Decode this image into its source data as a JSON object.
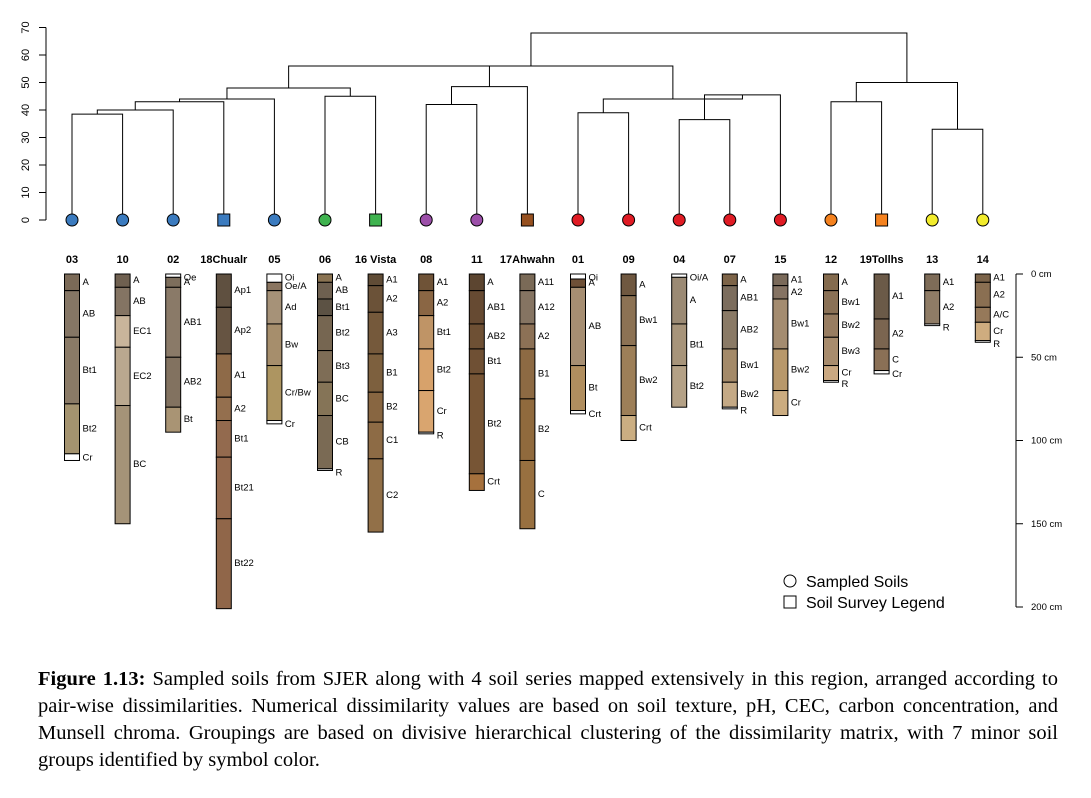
{
  "chart_data": {
    "type": "dendrogram",
    "y_axis": {
      "range": [
        0,
        70
      ],
      "ticks": [
        0,
        10,
        20,
        30,
        40,
        50,
        60,
        70
      ]
    },
    "depth_scale": {
      "labels": [
        "0 cm",
        "50 cm",
        "100 cm",
        "150 cm",
        "200 cm"
      ],
      "values_cm": [
        0,
        50,
        100,
        150,
        200
      ]
    },
    "leaves": [
      {
        "id": "03",
        "color": "#3b7bbf",
        "marker": "circle"
      },
      {
        "id": "10",
        "color": "#3b7bbf",
        "marker": "circle"
      },
      {
        "id": "02",
        "color": "#3b7bbf",
        "marker": "circle"
      },
      {
        "id": "18Chualr",
        "color": "#3b7bbf",
        "marker": "square"
      },
      {
        "id": "05",
        "color": "#3b7bbf",
        "marker": "circle"
      },
      {
        "id": "06",
        "color": "#3fb34f",
        "marker": "circle"
      },
      {
        "id": "16 Vista",
        "color": "#3fb34f",
        "marker": "square"
      },
      {
        "id": "08",
        "color": "#9c4fa9",
        "marker": "circle"
      },
      {
        "id": "11",
        "color": "#9c4fa9",
        "marker": "circle"
      },
      {
        "id": "17Ahwahn",
        "color": "#96501f",
        "marker": "square"
      },
      {
        "id": "01",
        "color": "#e01b24",
        "marker": "circle"
      },
      {
        "id": "09",
        "color": "#e01b24",
        "marker": "circle"
      },
      {
        "id": "04",
        "color": "#e01b24",
        "marker": "circle"
      },
      {
        "id": "07",
        "color": "#e01b24",
        "marker": "circle"
      },
      {
        "id": "15",
        "color": "#e01b24",
        "marker": "circle"
      },
      {
        "id": "12",
        "color": "#f5821f",
        "marker": "circle"
      },
      {
        "id": "19Tollhs",
        "color": "#f5821f",
        "marker": "square"
      },
      {
        "id": "13",
        "color": "#f2ec2c",
        "marker": "circle"
      },
      {
        "id": "14",
        "color": "#f2ec2c",
        "marker": "circle"
      }
    ],
    "merges": [
      {
        "a": 0,
        "b": 1,
        "height": 38.5
      },
      {
        "a": -1,
        "b": 2,
        "height": 40
      },
      {
        "a": -2,
        "b": 3,
        "height": 43
      },
      {
        "a": -3,
        "b": 4,
        "height": 44
      },
      {
        "a": 5,
        "b": 6,
        "height": 45
      },
      {
        "a": -4,
        "b": -5,
        "height": 48
      },
      {
        "a": 7,
        "b": 8,
        "height": 42
      },
      {
        "a": -7,
        "b": 9,
        "height": 48.5
      },
      {
        "a": -6,
        "b": -8,
        "height": 56
      },
      {
        "a": 10,
        "b": 11,
        "height": 39
      },
      {
        "a": 12,
        "b": 13,
        "height": 36.5
      },
      {
        "a": -11,
        "b": 14,
        "height": 45.5
      },
      {
        "a": -10,
        "b": -12,
        "height": 44
      },
      {
        "a": -9,
        "b": -13,
        "height": 56
      },
      {
        "a": 15,
        "b": 16,
        "height": 43
      },
      {
        "a": 17,
        "b": 18,
        "height": 33
      },
      {
        "a": -15,
        "b": -16,
        "height": 50
      },
      {
        "a": -14,
        "b": -17,
        "height": 68
      }
    ],
    "profiles": [
      {
        "id": "03",
        "horizons": [
          {
            "name": "A",
            "top": 0,
            "bottom": 10,
            "color": "#7b6a57"
          },
          {
            "name": "AB",
            "top": 10,
            "bottom": 38,
            "color": "#857665"
          },
          {
            "name": "Bt1",
            "top": 38,
            "bottom": 78,
            "color": "#8a7a66"
          },
          {
            "name": "Bt2",
            "top": 78,
            "bottom": 108,
            "color": "#a4936f"
          },
          {
            "name": "Cr",
            "top": 108,
            "bottom": 112,
            "color": "#ffffff"
          }
        ]
      },
      {
        "id": "10",
        "horizons": [
          {
            "name": "A",
            "top": 0,
            "bottom": 8,
            "color": "#6f6050"
          },
          {
            "name": "AB",
            "top": 8,
            "bottom": 25,
            "color": "#847463"
          },
          {
            "name": "EC1",
            "top": 25,
            "bottom": 44,
            "color": "#c9b59b"
          },
          {
            "name": "EC2",
            "top": 44,
            "bottom": 79,
            "color": "#baa88f"
          },
          {
            "name": "BC",
            "top": 79,
            "bottom": 150,
            "color": "#a59378"
          }
        ]
      },
      {
        "id": "02",
        "horizons": [
          {
            "name": "Oe",
            "top": 0,
            "bottom": 2,
            "color": "#ffffff"
          },
          {
            "name": "A",
            "top": 2,
            "bottom": 8,
            "color": "#7d6e5c"
          },
          {
            "name": "AB1",
            "top": 8,
            "bottom": 50,
            "color": "#8a7a68"
          },
          {
            "name": "AB2",
            "top": 50,
            "bottom": 80,
            "color": "#827260"
          },
          {
            "name": "Bt",
            "top": 80,
            "bottom": 95,
            "color": "#a99474"
          }
        ]
      },
      {
        "id": "18Chualr",
        "horizons": [
          {
            "name": "Ap1",
            "top": 0,
            "bottom": 20,
            "color": "#5f5040"
          },
          {
            "name": "Ap2",
            "top": 20,
            "bottom": 48,
            "color": "#665442"
          },
          {
            "name": "A1",
            "top": 48,
            "bottom": 74,
            "color": "#8e6a48"
          },
          {
            "name": "A2",
            "top": 74,
            "bottom": 88,
            "color": "#946f4e"
          },
          {
            "name": "Bt1",
            "top": 88,
            "bottom": 110,
            "color": "#936a4e"
          },
          {
            "name": "Bt21",
            "top": 110,
            "bottom": 147,
            "color": "#94694d"
          },
          {
            "name": "Bt22",
            "top": 147,
            "bottom": 201,
            "color": "#906649"
          }
        ]
      },
      {
        "id": "05",
        "horizons": [
          {
            "name": "Oi",
            "top": 0,
            "bottom": 5,
            "color": "#ffffff"
          },
          {
            "name": "Oe/A",
            "top": 5,
            "bottom": 10,
            "color": "#8a7560"
          },
          {
            "name": "Ad",
            "top": 10,
            "bottom": 30,
            "color": "#a69278"
          },
          {
            "name": "Bw",
            "top": 30,
            "bottom": 55,
            "color": "#a68e6c"
          },
          {
            "name": "Cr/Bw",
            "top": 55,
            "bottom": 88,
            "color": "#ad9561"
          },
          {
            "name": "Cr",
            "top": 88,
            "bottom": 90,
            "color": "#ffffff"
          }
        ]
      },
      {
        "id": "06",
        "horizons": [
          {
            "name": "A",
            "top": 0,
            "bottom": 5,
            "color": "#8a7352"
          },
          {
            "name": "AB",
            "top": 5,
            "bottom": 15,
            "color": "#6e6050"
          },
          {
            "name": "Bt1",
            "top": 15,
            "bottom": 25,
            "color": "#5c5244"
          },
          {
            "name": "Bt2",
            "top": 25,
            "bottom": 46,
            "color": "#766651"
          },
          {
            "name": "Bt3",
            "top": 46,
            "bottom": 65,
            "color": "#7e6d56"
          },
          {
            "name": "BC",
            "top": 65,
            "bottom": 85,
            "color": "#857457"
          },
          {
            "name": "CB",
            "top": 85,
            "bottom": 117,
            "color": "#7a6a54"
          },
          {
            "name": "R",
            "top": 117,
            "bottom": 118,
            "color": "#ffffff"
          }
        ]
      },
      {
        "id": "16 Vista",
        "horizons": [
          {
            "name": "A1",
            "top": 0,
            "bottom": 7,
            "color": "#604c36"
          },
          {
            "name": "A2",
            "top": 7,
            "bottom": 23,
            "color": "#6b5238"
          },
          {
            "name": "A3",
            "top": 23,
            "bottom": 48,
            "color": "#75593b"
          },
          {
            "name": "B1",
            "top": 48,
            "bottom": 71,
            "color": "#7d603e"
          },
          {
            "name": "B2",
            "top": 71,
            "bottom": 89,
            "color": "#886641"
          },
          {
            "name": "C1",
            "top": 89,
            "bottom": 111,
            "color": "#8d6b45"
          },
          {
            "name": "C2",
            "top": 111,
            "bottom": 155,
            "color": "#927048"
          }
        ]
      },
      {
        "id": "08",
        "horizons": [
          {
            "name": "A1",
            "top": 0,
            "bottom": 10,
            "color": "#6f5337"
          },
          {
            "name": "A2",
            "top": 10,
            "bottom": 25,
            "color": "#8a6644"
          },
          {
            "name": "Bt1",
            "top": 25,
            "bottom": 45,
            "color": "#bf9466"
          },
          {
            "name": "Bt2",
            "top": 45,
            "bottom": 70,
            "color": "#d7a26b"
          },
          {
            "name": "Cr",
            "top": 70,
            "bottom": 95,
            "color": "#d9a56f"
          },
          {
            "name": "R",
            "top": 95,
            "bottom": 96,
            "color": "#ffffff"
          }
        ]
      },
      {
        "id": "11",
        "horizons": [
          {
            "name": "A",
            "top": 0,
            "bottom": 10,
            "color": "#5c4530"
          },
          {
            "name": "AB1",
            "top": 10,
            "bottom": 30,
            "color": "#664a32"
          },
          {
            "name": "AB2",
            "top": 30,
            "bottom": 45,
            "color": "#6e5034"
          },
          {
            "name": "Bt1",
            "top": 45,
            "bottom": 60,
            "color": "#6f5034"
          },
          {
            "name": "Bt2",
            "top": 60,
            "bottom": 120,
            "color": "#775535"
          },
          {
            "name": "Crt",
            "top": 120,
            "bottom": 130,
            "color": "#a6713d"
          }
        ]
      },
      {
        "id": "17Ahwahn",
        "horizons": [
          {
            "name": "A11",
            "top": 0,
            "bottom": 10,
            "color": "#7a6a57"
          },
          {
            "name": "A12",
            "top": 10,
            "bottom": 30,
            "color": "#857462"
          },
          {
            "name": "A2",
            "top": 30,
            "bottom": 45,
            "color": "#8c7156"
          },
          {
            "name": "B1",
            "top": 45,
            "bottom": 75,
            "color": "#8d6a43"
          },
          {
            "name": "B2",
            "top": 75,
            "bottom": 112,
            "color": "#906a3d"
          },
          {
            "name": "C",
            "top": 112,
            "bottom": 153,
            "color": "#987040"
          }
        ]
      },
      {
        "id": "01",
        "horizons": [
          {
            "name": "Oi",
            "top": 0,
            "bottom": 3,
            "color": "#ffffff"
          },
          {
            "name": "A",
            "top": 3,
            "bottom": 8,
            "color": "#6e5037"
          },
          {
            "name": "AB",
            "top": 8,
            "bottom": 55,
            "color": "#a68e72"
          },
          {
            "name": "Bt",
            "top": 55,
            "bottom": 82,
            "color": "#b08e5f"
          },
          {
            "name": "Crt",
            "top": 82,
            "bottom": 84,
            "color": "#ffffff"
          }
        ]
      },
      {
        "id": "09",
        "horizons": [
          {
            "name": "A",
            "top": 0,
            "bottom": 13,
            "color": "#6f5840"
          },
          {
            "name": "Bw1",
            "top": 13,
            "bottom": 43,
            "color": "#8c7254"
          },
          {
            "name": "Bw2",
            "top": 43,
            "bottom": 85,
            "color": "#9d7f58"
          },
          {
            "name": "Crt",
            "top": 85,
            "bottom": 100,
            "color": "#cbae82"
          }
        ]
      },
      {
        "id": "04",
        "horizons": [
          {
            "name": "Oi/A",
            "top": 0,
            "bottom": 2,
            "color": "#ffffff"
          },
          {
            "name": "A",
            "top": 2,
            "bottom": 30,
            "color": "#9b8a74"
          },
          {
            "name": "Bt1",
            "top": 30,
            "bottom": 55,
            "color": "#a7947a"
          },
          {
            "name": "Bt2",
            "top": 55,
            "bottom": 80,
            "color": "#b4a186"
          }
        ]
      },
      {
        "id": "07",
        "horizons": [
          {
            "name": "A",
            "top": 0,
            "bottom": 7,
            "color": "#7d6448"
          },
          {
            "name": "AB1",
            "top": 7,
            "bottom": 22,
            "color": "#7c6d5d"
          },
          {
            "name": "AB2",
            "top": 22,
            "bottom": 45,
            "color": "#8a7a66"
          },
          {
            "name": "Bw1",
            "top": 45,
            "bottom": 65,
            "color": "#a48a69"
          },
          {
            "name": "Bw2",
            "top": 65,
            "bottom": 80,
            "color": "#c4a985"
          },
          {
            "name": "R",
            "top": 80,
            "bottom": 81,
            "color": "#ffffff"
          }
        ]
      },
      {
        "id": "15",
        "horizons": [
          {
            "name": "A1",
            "top": 0,
            "bottom": 7,
            "color": "#7a6a5a"
          },
          {
            "name": "A2",
            "top": 7,
            "bottom": 15,
            "color": "#857363"
          },
          {
            "name": "Bw1",
            "top": 15,
            "bottom": 45,
            "color": "#a48c70"
          },
          {
            "name": "Bw2",
            "top": 45,
            "bottom": 70,
            "color": "#b8986b"
          },
          {
            "name": "Cr",
            "top": 70,
            "bottom": 85,
            "color": "#cbac80"
          }
        ]
      },
      {
        "id": "12",
        "horizons": [
          {
            "name": "A",
            "top": 0,
            "bottom": 10,
            "color": "#846b4e"
          },
          {
            "name": "Bw1",
            "top": 10,
            "bottom": 24,
            "color": "#8a7156"
          },
          {
            "name": "Bw2",
            "top": 24,
            "bottom": 38,
            "color": "#987d61"
          },
          {
            "name": "Bw3",
            "top": 38,
            "bottom": 55,
            "color": "#a88c6d"
          },
          {
            "name": "Cr",
            "top": 55,
            "bottom": 64,
            "color": "#caa881"
          },
          {
            "name": "R",
            "top": 64,
            "bottom": 65,
            "color": "#ffffff"
          }
        ]
      },
      {
        "id": "19Tollhs",
        "horizons": [
          {
            "name": "A1",
            "top": 0,
            "bottom": 27,
            "color": "#6b5a48"
          },
          {
            "name": "A2",
            "top": 27,
            "bottom": 45,
            "color": "#7b6550"
          },
          {
            "name": "C",
            "top": 45,
            "bottom": 58,
            "color": "#8a7056"
          },
          {
            "name": "Cr",
            "top": 58,
            "bottom": 60,
            "color": "#ffffff"
          }
        ]
      },
      {
        "id": "13",
        "horizons": [
          {
            "name": "A1",
            "top": 0,
            "bottom": 10,
            "color": "#7e6c58"
          },
          {
            "name": "A2",
            "top": 10,
            "bottom": 30,
            "color": "#8f7c66"
          },
          {
            "name": "R",
            "top": 30,
            "bottom": 31,
            "color": "#ffffff"
          }
        ]
      },
      {
        "id": "14",
        "horizons": [
          {
            "name": "A1",
            "top": 0,
            "bottom": 5,
            "color": "#7b6349"
          },
          {
            "name": "A2",
            "top": 5,
            "bottom": 20,
            "color": "#8a6f52"
          },
          {
            "name": "A/C",
            "top": 20,
            "bottom": 29,
            "color": "#96795a"
          },
          {
            "name": "Cr",
            "top": 29,
            "bottom": 40,
            "color": "#ceac7f"
          },
          {
            "name": "R",
            "top": 40,
            "bottom": 41,
            "color": "#ffffff"
          }
        ]
      }
    ],
    "legend": [
      {
        "label": "Sampled Soils",
        "marker": "circle"
      },
      {
        "label": "Soil Survey Legend",
        "marker": "square"
      }
    ]
  },
  "caption": {
    "lead": "Figure 1.13:",
    "text": "Sampled soils from SJER along with 4 soil series mapped extensively in this region, arranged according to pair-wise dissimilarities. Numerical dissimilarity values are based on soil texture, pH, CEC, carbon concentration, and Munsell chroma. Groupings are based on divisive hierarchical clustering of the dissimilarity matrix, with 7 minor soil groups identified by symbol color."
  }
}
